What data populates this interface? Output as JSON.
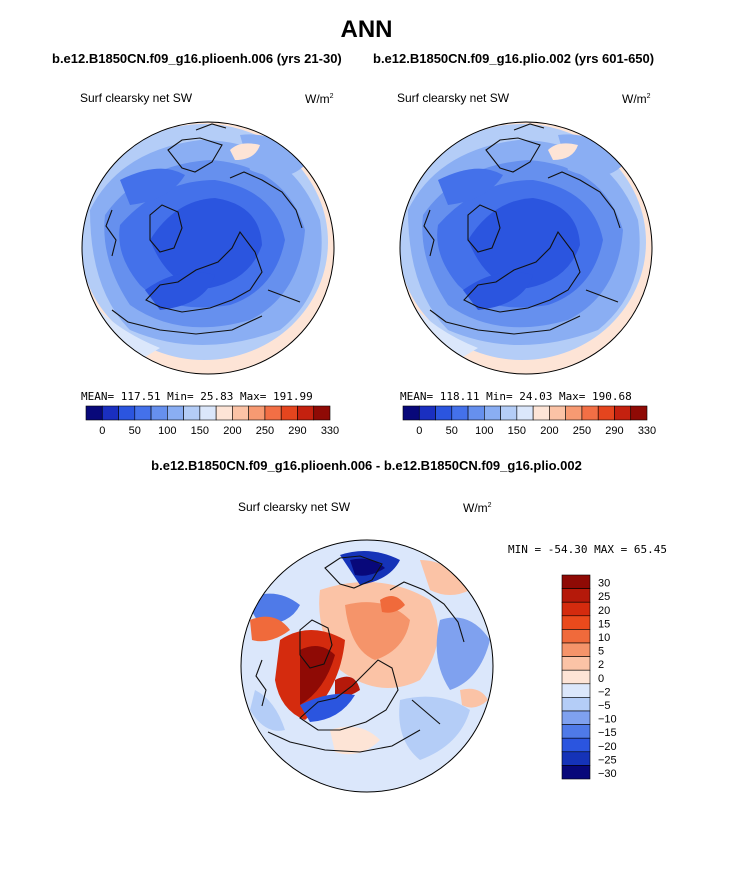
{
  "header": {
    "title": "ANN",
    "left_run": "b.e12.B1850CN.f09_g16.plioenh.006 (yrs 21-30)",
    "right_run": "b.e12.B1850CN.f09_g16.plio.002 (yrs 601-650)",
    "diff_title": "b.e12.B1850CN.f09_g16.plioenh.006 - b.e12.B1850CN.f09_g16.plio.002"
  },
  "panels": {
    "left": {
      "variable": "Surf clearsky net SW",
      "units": "W/m",
      "units_exp": "2",
      "stats": "MEAN= 117.51  Min=  25.83  Max= 191.99"
    },
    "right": {
      "variable": "Surf clearsky net SW",
      "units": "W/m",
      "units_exp": "2",
      "stats": "MEAN= 118.11  Min=  24.03  Max= 190.68"
    },
    "diff": {
      "variable": "Surf clearsky net SW",
      "units": "W/m",
      "units_exp": "2",
      "minmax": "MIN = -54.30 MAX =  65.45"
    }
  },
  "chart_data": [
    {
      "type": "heatmap",
      "projection": "north polar stereographic",
      "title": "Surf clearsky net SW",
      "units": "W/m2",
      "stats": {
        "mean": 117.51,
        "min": 25.83,
        "max": 191.99
      },
      "colorbar": {
        "tick_labels": [
          "0",
          "50",
          "100",
          "150",
          "200",
          "250",
          "290",
          "330"
        ],
        "colors": [
          "#08087a",
          "#1a2fc0",
          "#2b55df",
          "#4471ea",
          "#6690ee",
          "#8aaef3",
          "#b4cdf7",
          "#dbe7fb",
          "#fde4d6",
          "#fbc3a6",
          "#f79a72",
          "#f26f45",
          "#e5451e",
          "#c4210f",
          "#8f0a05"
        ]
      }
    },
    {
      "type": "heatmap",
      "projection": "north polar stereographic",
      "title": "Surf clearsky net SW",
      "units": "W/m2",
      "stats": {
        "mean": 118.11,
        "min": 24.03,
        "max": 190.68
      },
      "colorbar": {
        "tick_labels": [
          "0",
          "50",
          "100",
          "150",
          "200",
          "250",
          "290",
          "330"
        ],
        "colors": [
          "#08087a",
          "#1a2fc0",
          "#2b55df",
          "#4471ea",
          "#6690ee",
          "#8aaef3",
          "#b4cdf7",
          "#dbe7fb",
          "#fde4d6",
          "#fbc3a6",
          "#f79a72",
          "#f26f45",
          "#e5451e",
          "#c4210f",
          "#8f0a05"
        ]
      }
    },
    {
      "type": "heatmap",
      "projection": "north polar stereographic",
      "title": "Surf clearsky net SW",
      "units": "W/m2",
      "stats": {
        "min": -54.3,
        "max": 65.45
      },
      "colorbar": {
        "tick_labels": [
          "30",
          "25",
          "20",
          "15",
          "10",
          "5",
          "2",
          "0",
          "-2",
          "-5",
          "-10",
          "-15",
          "-20",
          "-25",
          "-30"
        ],
        "colors": [
          "#8f0a05",
          "#b5190a",
          "#d42b0e",
          "#ea4a1c",
          "#f06a3b",
          "#f5946a",
          "#fbc3a6",
          "#fde4d6",
          "#dbe7fb",
          "#b4cdf7",
          "#7fa1ef",
          "#4f7ae8",
          "#2b55df",
          "#1533b8",
          "#08087a"
        ]
      }
    }
  ]
}
